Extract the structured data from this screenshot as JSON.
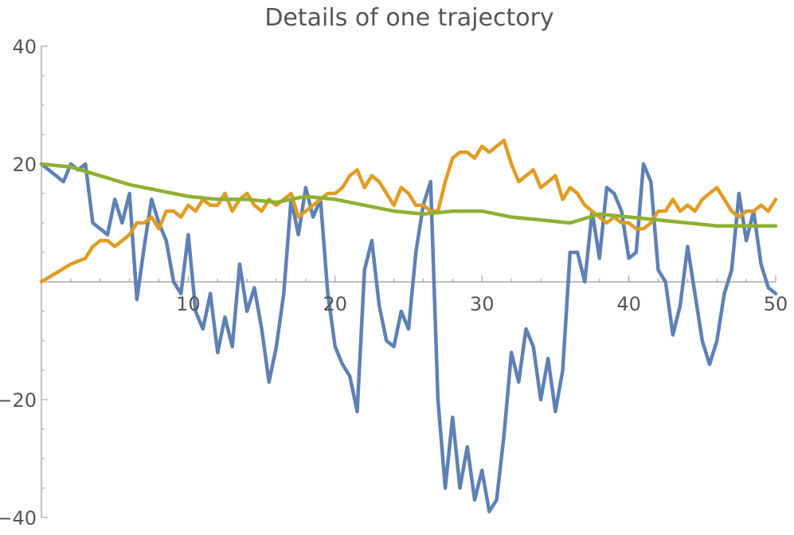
{
  "chart_data": {
    "type": "line",
    "title": "Details of one trajectory",
    "xlabel": "",
    "ylabel": "",
    "xlim": [
      0,
      50
    ],
    "ylim": [
      -40,
      40
    ],
    "x_ticks": [
      10,
      20,
      30,
      40,
      50
    ],
    "y_ticks": [
      -40,
      -20,
      20,
      40
    ],
    "grid": false,
    "legend": "none",
    "colors": {
      "blue": "#5E81B5",
      "orange": "#E19C24",
      "green": "#8FB032",
      "text": "#555555",
      "axis": "#999999"
    },
    "series": [
      {
        "color": "#5E81B5",
        "x": [
          0,
          1,
          1.5,
          2,
          2.5,
          3,
          3.5,
          4,
          4.5,
          5,
          5.5,
          6,
          6.5,
          7,
          7.5,
          8,
          8.5,
          9,
          9.5,
          10,
          10.5,
          11,
          11.5,
          12,
          12.5,
          13,
          13.5,
          14,
          14.5,
          15,
          15.5,
          16,
          16.5,
          17,
          17.5,
          18,
          18.5,
          19,
          19.5,
          20,
          20.5,
          21,
          21.5,
          22,
          22.5,
          23,
          23.5,
          24,
          24.5,
          25,
          25.5,
          26,
          26.5,
          27,
          27.5,
          28,
          28.5,
          29,
          29.5,
          30,
          30.5,
          31,
          31.5,
          32,
          32.5,
          33,
          33.5,
          34,
          34.5,
          35,
          35.5,
          36,
          36.5,
          37,
          37.5,
          38,
          38.5,
          39,
          39.5,
          40,
          40.5,
          41,
          41.5,
          42,
          42.5,
          43,
          43.5,
          44,
          44.5,
          45,
          45.5,
          46,
          46.5,
          47,
          47.5,
          48,
          48.5,
          49,
          49.5,
          50
        ],
        "y": [
          20,
          18,
          17,
          20,
          19,
          20,
          10,
          9,
          8,
          14,
          10,
          15,
          -3,
          6,
          14,
          10,
          7,
          0,
          -2,
          8,
          -5,
          -8,
          -2,
          -12,
          -6,
          -11,
          3,
          -5,
          -1,
          -8,
          -17,
          -11,
          -2,
          14,
          8,
          16,
          11,
          14,
          -2,
          -11,
          -14,
          -16,
          -22,
          2,
          7,
          -4,
          -10,
          -11,
          -5,
          -8,
          5,
          13,
          17,
          -20,
          -35,
          -23,
          -35,
          -28,
          -37,
          -32,
          -39,
          -37,
          -26,
          -12,
          -17,
          -8,
          -11,
          -20,
          -13,
          -22,
          -15,
          5,
          5,
          0,
          12,
          4,
          16,
          15,
          12,
          4,
          5,
          20,
          17,
          2,
          0,
          -9,
          -4,
          6,
          -2,
          -10,
          -14,
          -10,
          -2,
          2,
          15,
          7,
          12,
          3,
          -1,
          -2
        ]
      },
      {
        "color": "#E19C24",
        "x": [
          0,
          2,
          3,
          3.5,
          4,
          4.5,
          5,
          5.5,
          6,
          6.5,
          7,
          7.5,
          8,
          8.5,
          9,
          9.5,
          10,
          10.5,
          11,
          11.5,
          12,
          12.5,
          13,
          13.5,
          14,
          14.5,
          15,
          15.5,
          16,
          16.5,
          17,
          17.5,
          18,
          18.5,
          19,
          19.5,
          20,
          20.5,
          21,
          21.5,
          22,
          22.5,
          23,
          23.5,
          24,
          24.5,
          25,
          25.5,
          26,
          26.5,
          27,
          27.5,
          28,
          28.5,
          29,
          29.5,
          30,
          30.5,
          31,
          31.5,
          32,
          32.5,
          33,
          33.5,
          34,
          34.5,
          35,
          35.5,
          36,
          36.5,
          37,
          37.5,
          38,
          38.5,
          39,
          39.5,
          40,
          40.5,
          41,
          41.5,
          42,
          42.5,
          43,
          43.5,
          44,
          44.5,
          45,
          45.5,
          46,
          46.5,
          47,
          47.5,
          48,
          48.5,
          49,
          49.5,
          50
        ],
        "y": [
          0,
          3,
          4,
          6,
          7,
          7,
          6,
          7,
          8,
          10,
          10,
          11,
          9,
          12,
          12,
          11,
          13,
          12,
          14,
          13,
          13,
          15,
          12,
          14,
          15,
          13,
          12,
          14,
          13,
          14,
          15,
          11,
          12,
          13,
          14,
          15,
          15,
          16,
          18,
          19,
          16,
          18,
          17,
          15,
          13,
          16,
          15,
          13,
          13,
          12,
          12,
          17,
          21,
          22,
          22,
          21,
          23,
          22,
          23,
          24,
          20,
          17,
          18,
          19,
          16,
          17,
          18,
          14,
          16,
          15,
          13,
          12,
          11,
          10,
          11,
          10,
          10,
          9,
          9,
          10,
          12,
          12,
          14,
          12,
          13,
          12,
          14,
          15,
          16,
          14,
          12,
          11,
          12,
          12,
          13,
          12,
          14
        ]
      },
      {
        "color": "#8FB032",
        "x": [
          0,
          2,
          4,
          6,
          8,
          10,
          12,
          14,
          16,
          18,
          20,
          22,
          24,
          26,
          28,
          30,
          32,
          34,
          36,
          38,
          40,
          42,
          44,
          46,
          48,
          50
        ],
        "y": [
          20,
          19.5,
          18,
          16.5,
          15.5,
          14.5,
          14,
          14,
          13.5,
          14.5,
          14,
          13,
          12,
          11.5,
          12,
          12,
          11,
          10.5,
          10,
          11.5,
          11,
          10.5,
          10,
          9.5,
          9.5,
          9.5
        ]
      }
    ]
  }
}
